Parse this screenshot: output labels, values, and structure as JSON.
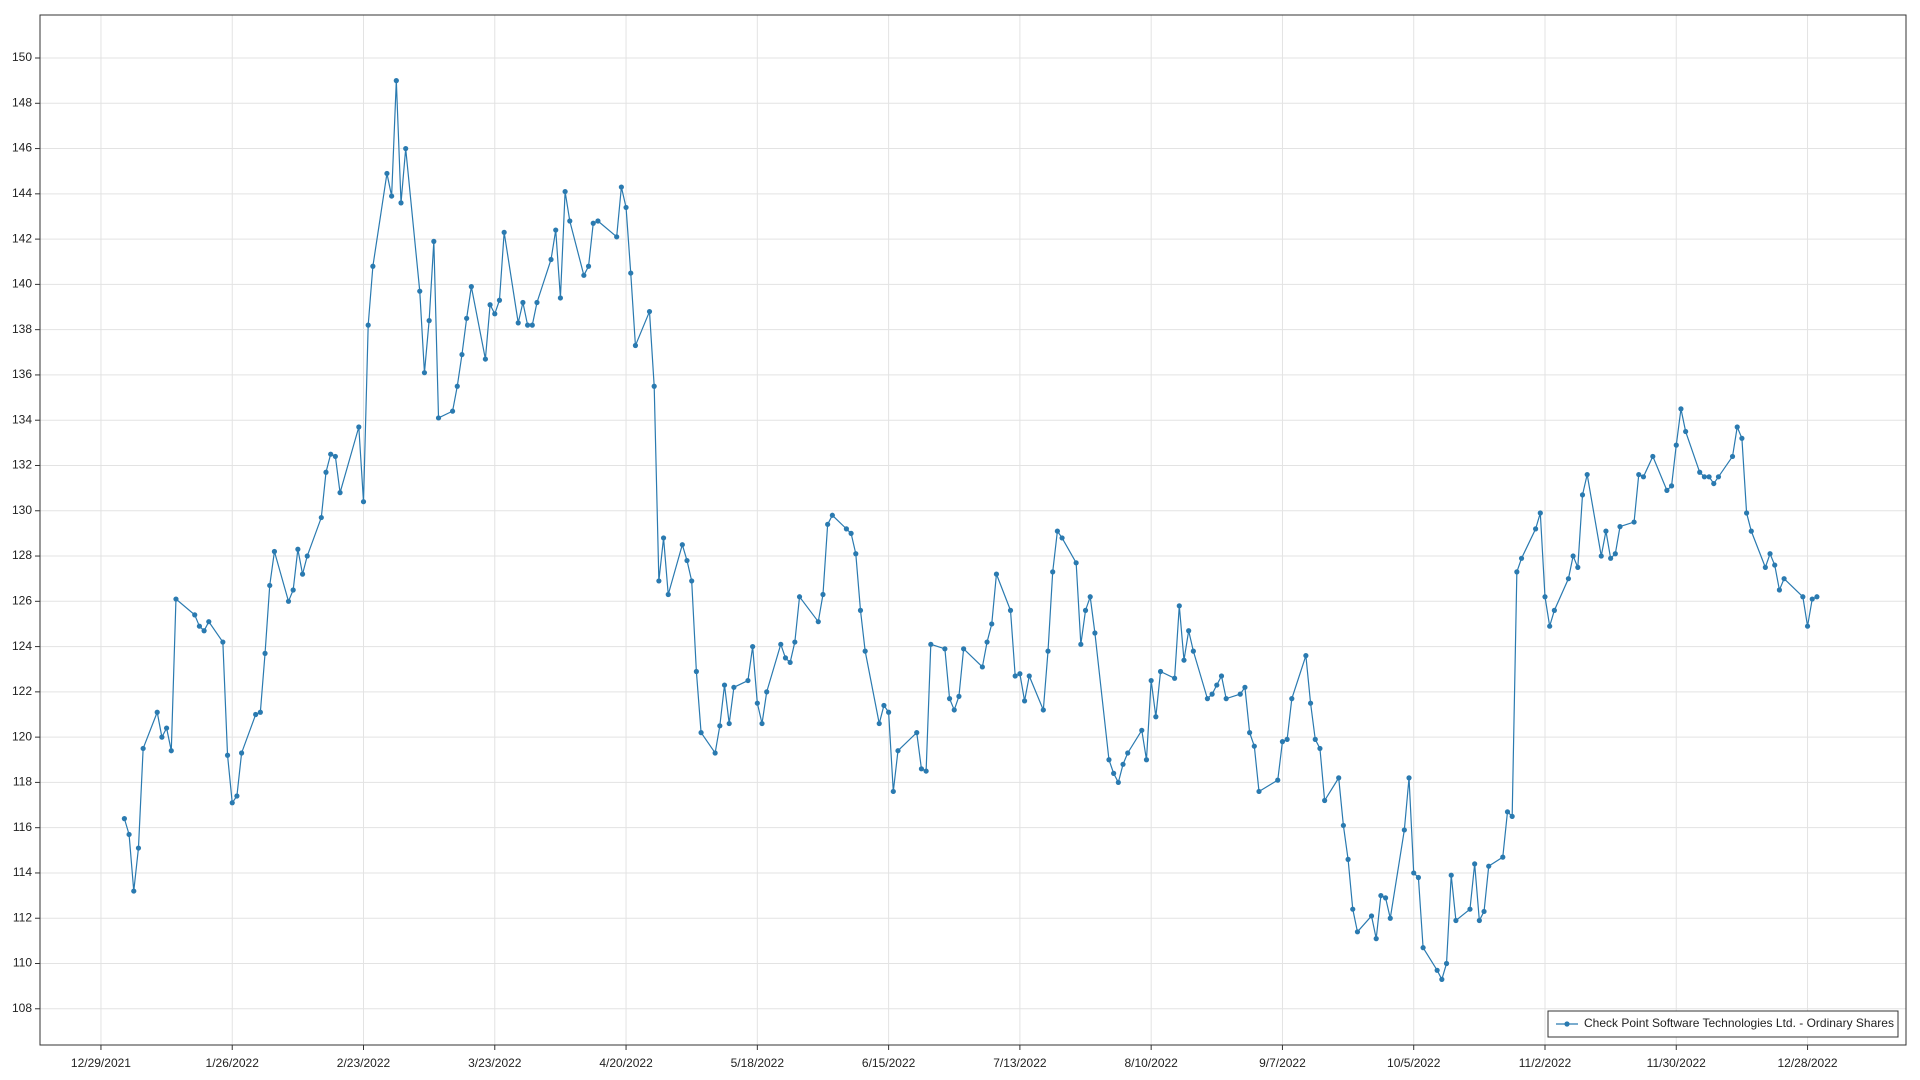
{
  "chart_data": {
    "type": "line",
    "x": [
      "1/3/2022",
      "1/4/2022",
      "1/5/2022",
      "1/6/2022",
      "1/7/2022",
      "1/10/2022",
      "1/11/2022",
      "1/12/2022",
      "1/13/2022",
      "1/14/2022",
      "1/18/2022",
      "1/19/2022",
      "1/20/2022",
      "1/21/2022",
      "1/24/2022",
      "1/25/2022",
      "1/26/2022",
      "1/27/2022",
      "1/28/2022",
      "1/31/2022",
      "2/1/2022",
      "2/2/2022",
      "2/3/2022",
      "2/4/2022",
      "2/7/2022",
      "2/8/2022",
      "2/9/2022",
      "2/10/2022",
      "2/11/2022",
      "2/14/2022",
      "2/15/2022",
      "2/16/2022",
      "2/17/2022",
      "2/18/2022",
      "2/22/2022",
      "2/23/2022",
      "2/24/2022",
      "2/25/2022",
      "2/28/2022",
      "3/1/2022",
      "3/2/2022",
      "3/3/2022",
      "3/4/2022",
      "3/7/2022",
      "3/8/2022",
      "3/9/2022",
      "3/10/2022",
      "3/11/2022",
      "3/14/2022",
      "3/15/2022",
      "3/16/2022",
      "3/17/2022",
      "3/18/2022",
      "3/21/2022",
      "3/22/2022",
      "3/23/2022",
      "3/24/2022",
      "3/25/2022",
      "3/28/2022",
      "3/29/2022",
      "3/30/2022",
      "3/31/2022",
      "4/1/2022",
      "4/4/2022",
      "4/5/2022",
      "4/6/2022",
      "4/7/2022",
      "4/8/2022",
      "4/11/2022",
      "4/12/2022",
      "4/13/2022",
      "4/14/2022",
      "4/18/2022",
      "4/19/2022",
      "4/20/2022",
      "4/21/2022",
      "4/22/2022",
      "4/25/2022",
      "4/26/2022",
      "4/27/2022",
      "4/28/2022",
      "4/29/2022",
      "5/2/2022",
      "5/3/2022",
      "5/4/2022",
      "5/5/2022",
      "5/6/2022",
      "5/9/2022",
      "5/10/2022",
      "5/11/2022",
      "5/12/2022",
      "5/13/2022",
      "5/16/2022",
      "5/17/2022",
      "5/18/2022",
      "5/19/2022",
      "5/20/2022",
      "5/23/2022",
      "5/24/2022",
      "5/25/2022",
      "5/26/2022",
      "5/27/2022",
      "5/31/2022",
      "6/1/2022",
      "6/2/2022",
      "6/3/2022",
      "6/6/2022",
      "6/7/2022",
      "6/8/2022",
      "6/9/2022",
      "6/10/2022",
      "6/13/2022",
      "6/14/2022",
      "6/15/2022",
      "6/16/2022",
      "6/17/2022",
      "6/21/2022",
      "6/22/2022",
      "6/23/2022",
      "6/24/2022",
      "6/27/2022",
      "6/28/2022",
      "6/29/2022",
      "6/30/2022",
      "7/1/2022",
      "7/5/2022",
      "7/6/2022",
      "7/7/2022",
      "7/8/2022",
      "7/11/2022",
      "7/12/2022",
      "7/13/2022",
      "7/14/2022",
      "7/15/2022",
      "7/18/2022",
      "7/19/2022",
      "7/20/2022",
      "7/21/2022",
      "7/22/2022",
      "7/25/2022",
      "7/26/2022",
      "7/27/2022",
      "7/28/2022",
      "7/29/2022",
      "8/1/2022",
      "8/2/2022",
      "8/3/2022",
      "8/4/2022",
      "8/5/2022",
      "8/8/2022",
      "8/9/2022",
      "8/10/2022",
      "8/11/2022",
      "8/12/2022",
      "8/15/2022",
      "8/16/2022",
      "8/17/2022",
      "8/18/2022",
      "8/19/2022",
      "8/22/2022",
      "8/23/2022",
      "8/24/2022",
      "8/25/2022",
      "8/26/2022",
      "8/29/2022",
      "8/30/2022",
      "8/31/2022",
      "9/1/2022",
      "9/2/2022",
      "9/6/2022",
      "9/7/2022",
      "9/8/2022",
      "9/9/2022",
      "9/12/2022",
      "9/13/2022",
      "9/14/2022",
      "9/15/2022",
      "9/16/2022",
      "9/19/2022",
      "9/20/2022",
      "9/21/2022",
      "9/22/2022",
      "9/23/2022",
      "9/26/2022",
      "9/27/2022",
      "9/28/2022",
      "9/29/2022",
      "9/30/2022",
      "10/3/2022",
      "10/4/2022",
      "10/5/2022",
      "10/6/2022",
      "10/7/2022",
      "10/10/2022",
      "10/11/2022",
      "10/12/2022",
      "10/13/2022",
      "10/14/2022",
      "10/17/2022",
      "10/18/2022",
      "10/19/2022",
      "10/20/2022",
      "10/21/2022",
      "10/24/2022",
      "10/25/2022",
      "10/26/2022",
      "10/27/2022",
      "10/28/2022",
      "10/31/2022",
      "11/1/2022",
      "11/2/2022",
      "11/3/2022",
      "11/4/2022",
      "11/7/2022",
      "11/8/2022",
      "11/9/2022",
      "11/10/2022",
      "11/11/2022",
      "11/14/2022",
      "11/15/2022",
      "11/16/2022",
      "11/17/2022",
      "11/18/2022",
      "11/21/2022",
      "11/22/2022",
      "11/23/2022",
      "11/25/2022",
      "11/28/2022",
      "11/29/2022",
      "11/30/2022",
      "12/1/2022",
      "12/2/2022",
      "12/5/2022",
      "12/6/2022",
      "12/7/2022",
      "12/8/2022",
      "12/9/2022",
      "12/12/2022",
      "12/13/2022",
      "12/14/2022",
      "12/15/2022",
      "12/16/2022",
      "12/19/2022",
      "12/20/2022",
      "12/21/2022",
      "12/22/2022",
      "12/23/2022",
      "12/27/2022",
      "12/28/2022",
      "12/29/2022",
      "12/30/2022"
    ],
    "series": [
      {
        "name": "Check Point Software Technologies Ltd. - Ordinary Shares",
        "color": "#2a7ab0",
        "values": [
          116.4,
          115.7,
          113.2,
          115.1,
          119.5,
          121.1,
          120.0,
          120.4,
          119.4,
          126.1,
          125.4,
          124.9,
          124.7,
          125.1,
          124.2,
          119.2,
          117.1,
          117.4,
          119.3,
          121.0,
          121.1,
          123.7,
          126.7,
          128.2,
          126.0,
          126.5,
          128.3,
          127.2,
          128.0,
          129.7,
          131.7,
          132.5,
          132.4,
          130.8,
          133.7,
          130.4,
          138.2,
          140.8,
          144.9,
          143.9,
          149.0,
          143.6,
          146.0,
          139.7,
          136.1,
          138.4,
          141.9,
          134.1,
          134.4,
          135.5,
          136.9,
          138.5,
          139.9,
          136.7,
          139.1,
          138.7,
          139.3,
          142.3,
          138.3,
          139.2,
          138.2,
          138.2,
          139.2,
          141.1,
          142.4,
          139.4,
          144.1,
          142.8,
          140.4,
          140.8,
          142.7,
          142.8,
          142.1,
          144.3,
          143.4,
          140.5,
          137.3,
          138.8,
          135.5,
          126.9,
          128.8,
          126.3,
          128.5,
          127.8,
          126.9,
          122.9,
          120.2,
          119.3,
          120.5,
          122.3,
          120.6,
          122.2,
          122.5,
          124.0,
          121.5,
          120.6,
          122.0,
          124.1,
          123.5,
          123.3,
          124.2,
          126.2,
          125.1,
          126.3,
          129.4,
          129.8,
          129.2,
          129.0,
          128.1,
          125.6,
          123.8,
          120.6,
          121.4,
          121.1,
          117.6,
          119.4,
          120.2,
          118.6,
          118.5,
          124.1,
          123.9,
          121.7,
          121.2,
          121.8,
          123.9,
          123.1,
          124.2,
          125.0,
          127.2,
          125.6,
          122.7,
          122.8,
          121.6,
          122.7,
          121.2,
          123.8,
          127.3,
          129.1,
          128.8,
          127.7,
          124.1,
          125.6,
          126.2,
          124.6,
          119.0,
          118.4,
          118.0,
          118.8,
          119.3,
          120.3,
          119.0,
          122.5,
          120.9,
          122.9,
          122.6,
          125.8,
          123.4,
          124.7,
          123.8,
          121.7,
          121.9,
          122.3,
          122.7,
          121.7,
          121.9,
          122.2,
          120.2,
          119.6,
          117.6,
          118.1,
          119.8,
          119.9,
          121.7,
          123.6,
          121.5,
          119.9,
          119.5,
          117.2,
          118.2,
          116.1,
          114.6,
          112.4,
          111.4,
          112.1,
          111.1,
          113.0,
          112.9,
          112.0,
          115.9,
          118.2,
          114.0,
          113.8,
          110.7,
          109.7,
          109.3,
          110.0,
          113.9,
          111.9,
          112.4,
          114.4,
          111.9,
          112.3,
          114.3,
          114.7,
          116.7,
          116.5,
          127.3,
          127.9,
          129.2,
          129.9,
          126.2,
          124.9,
          125.6,
          127.0,
          128.0,
          127.5,
          130.7,
          131.6,
          128.0,
          129.1,
          127.9,
          128.1,
          129.3,
          129.5,
          131.6,
          131.5,
          132.4,
          130.9,
          131.1,
          132.9,
          134.5,
          133.5,
          131.7,
          131.5,
          131.5,
          131.2,
          131.5,
          132.4,
          133.7,
          133.2,
          129.9,
          129.1,
          127.5,
          128.1,
          127.6,
          126.5,
          127.0,
          126.2,
          124.9,
          126.1,
          126.2
        ]
      }
    ],
    "xlim": [
      "12/16/2021",
      "1/18/2023"
    ],
    "xticks": [
      "12/29/2021",
      "1/26/2022",
      "2/23/2022",
      "3/23/2022",
      "4/20/2022",
      "5/18/2022",
      "6/15/2022",
      "7/13/2022",
      "8/10/2022",
      "9/7/2022",
      "10/5/2022",
      "11/2/2022",
      "11/30/2022",
      "12/28/2022"
    ],
    "ylim": [
      106.4,
      151.9
    ],
    "yticks": [
      108,
      110,
      112,
      114,
      116,
      118,
      120,
      122,
      124,
      126,
      128,
      130,
      132,
      134,
      136,
      138,
      140,
      142,
      144,
      146,
      148,
      150
    ],
    "grid": true,
    "legend": "lower right"
  }
}
